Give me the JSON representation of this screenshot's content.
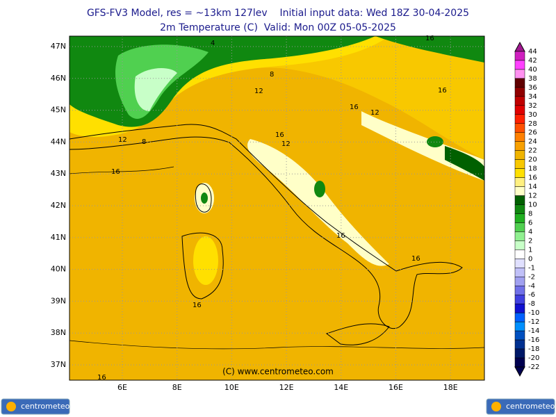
{
  "header": {
    "title": "GFS-FV3 Model, res = ~13km 127lev    Initial input data: Wed 18Z 30-04-2025",
    "subtitle": "2m Temperature (C)  Valid: Mon 00Z 05-05-2025"
  },
  "map": {
    "lat_labels": [
      "47N",
      "46N",
      "45N",
      "44N",
      "43N",
      "42N",
      "41N",
      "40N",
      "39N",
      "38N",
      "37N"
    ],
    "lon_labels": [
      "6E",
      "8E",
      "10E",
      "12E",
      "14E",
      "16E",
      "18E"
    ],
    "contour_labels": [
      "4",
      "8",
      "12",
      "8",
      "12",
      "16",
      "16",
      "12",
      "16",
      "12",
      "16",
      "16",
      "16",
      "16",
      "16",
      "16"
    ],
    "copyright": "(C) www.centrometeo.com"
  },
  "colorbar": {
    "levels": [
      44,
      42,
      40,
      38,
      36,
      34,
      32,
      30,
      28,
      26,
      24,
      22,
      20,
      18,
      16,
      14,
      12,
      10,
      8,
      6,
      4,
      2,
      1,
      0,
      -1,
      -2,
      -4,
      -6,
      -8,
      -10,
      -12,
      -14,
      -16,
      -18,
      -20,
      -22
    ],
    "colors": [
      "#a01890",
      "#d020c0",
      "#ff40ff",
      "#ff90f0",
      "#600000",
      "#900000",
      "#c00000",
      "#e00000",
      "#ff2000",
      "#ff5000",
      "#ff8000",
      "#f8a000",
      "#f0b400",
      "#f8c800",
      "#ffe000",
      "#fff080",
      "#ffffc8",
      "#006000",
      "#108810",
      "#20b020",
      "#50d050",
      "#90f090",
      "#c8ffc8",
      "#ffffff",
      "#e0e0ff",
      "#c0c0f8",
      "#a0a0f0",
      "#7070e8",
      "#4040e0",
      "#1010d0",
      "#0060ff",
      "#0090ff",
      "#0050c0",
      "#003090",
      "#001868",
      "#000050"
    ]
  },
  "footer": {
    "logo_left": "centrometeo",
    "logo_right": "centrometeo"
  }
}
